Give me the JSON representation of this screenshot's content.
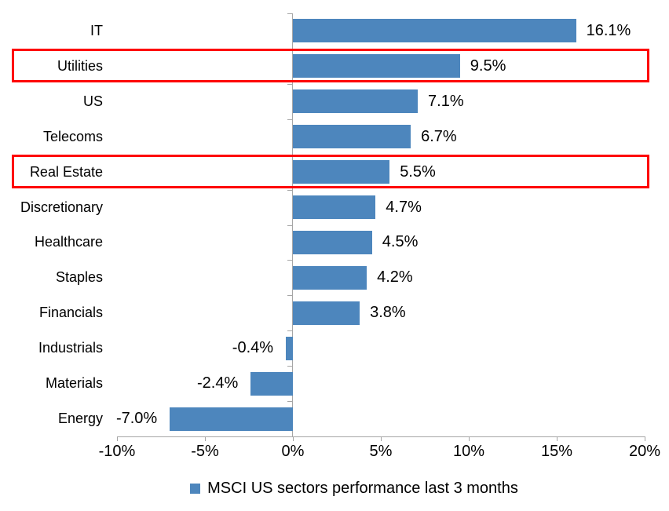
{
  "chart_data": {
    "type": "bar",
    "orientation": "horizontal",
    "title": "",
    "xlabel": "",
    "ylabel": "",
    "categories": [
      "IT",
      "Utilities",
      "US",
      "Telecoms",
      "Real Estate",
      "Discretionary",
      "Healthcare",
      "Staples",
      "Financials",
      "Industrials",
      "Materials",
      "Energy"
    ],
    "values": [
      16.1,
      9.5,
      7.1,
      6.7,
      5.5,
      4.7,
      4.5,
      4.2,
      3.8,
      -0.4,
      -2.4,
      -7.0
    ],
    "value_labels": [
      "16.1%",
      "9.5%",
      "7.1%",
      "6.7%",
      "5.5%",
      "4.7%",
      "4.5%",
      "4.2%",
      "3.8%",
      "-0.4%",
      "-2.4%",
      "-7.0%"
    ],
    "highlighted_categories": [
      "Utilities",
      "Real Estate"
    ],
    "x_ticks": [
      {
        "value": -10,
        "label": "-10%"
      },
      {
        "value": -5,
        "label": "-5%"
      },
      {
        "value": 0,
        "label": "0%"
      },
      {
        "value": 5,
        "label": "5%"
      },
      {
        "value": 10,
        "label": "10%"
      },
      {
        "value": 15,
        "label": "15%"
      },
      {
        "value": 20,
        "label": "20%"
      }
    ],
    "xlim": [
      -10,
      20
    ],
    "grid": false,
    "legend_position": "bottom-center",
    "legend": "MSCI US sectors performance last 3 months",
    "bar_color": "#4d86bd",
    "highlight_color": "#fe0000",
    "axis_color": "#a6a6a6",
    "text_color": "#000000"
  }
}
